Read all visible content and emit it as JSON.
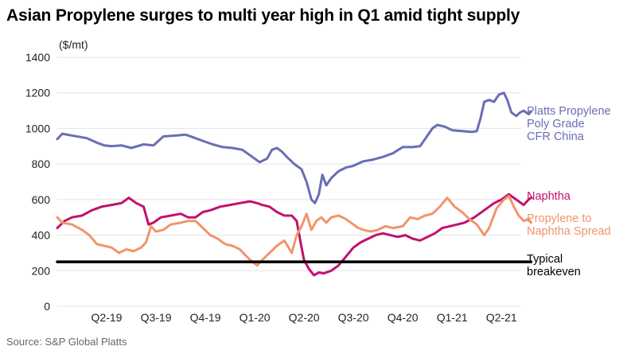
{
  "title": "Asian Propylene surges to multi year high in Q1 amid tight supply",
  "source": "Source: S&P Global Platts",
  "colors": {
    "propylene": "#6a6eb3",
    "naphtha": "#c2116e",
    "spread": "#f0956a",
    "breakeven": "#000000",
    "grid": "#e3e3e3"
  },
  "chart_data": {
    "type": "line",
    "unit_label": "($/mt)",
    "ylim": [
      0,
      1400
    ],
    "y_ticks": [
      {
        "value": 0,
        "label": "0"
      },
      {
        "value": 200,
        "label": "200"
      },
      {
        "value": 400,
        "label": "400"
      },
      {
        "value": 600,
        "label": "600"
      },
      {
        "value": 800,
        "label": "800"
      },
      {
        "value": 1000,
        "label": "1000"
      },
      {
        "value": 1200,
        "label": "1200"
      },
      {
        "value": 1400,
        "label": "1400"
      }
    ],
    "x_ticks": [
      "Q2-19",
      "Q3-19",
      "Q4-19",
      "Q1-20",
      "Q2-20",
      "Q3-20",
      "Q4-20",
      "Q1-21",
      "Q2-21"
    ],
    "x_range": [
      0,
      9.4
    ],
    "grid": "horizontal",
    "series": [
      {
        "name": "Platts Propylene Poly Grade CFR China",
        "label_lines": [
          "Platts Propylene",
          "Poly Grade",
          "CFR China"
        ],
        "color_key": "propylene",
        "points": [
          [
            0,
            940
          ],
          [
            0.1,
            970
          ],
          [
            0.3,
            960
          ],
          [
            0.6,
            945
          ],
          [
            0.8,
            920
          ],
          [
            0.95,
            905
          ],
          [
            1.1,
            900
          ],
          [
            1.3,
            905
          ],
          [
            1.5,
            890
          ],
          [
            1.75,
            910
          ],
          [
            1.95,
            905
          ],
          [
            2.15,
            955
          ],
          [
            2.4,
            960
          ],
          [
            2.6,
            965
          ],
          [
            2.75,
            950
          ],
          [
            2.95,
            930
          ],
          [
            3.15,
            910
          ],
          [
            3.35,
            895
          ],
          [
            3.55,
            890
          ],
          [
            3.75,
            880
          ],
          [
            3.95,
            840
          ],
          [
            4.1,
            810
          ],
          [
            4.25,
            830
          ],
          [
            4.35,
            880
          ],
          [
            4.45,
            890
          ],
          [
            4.55,
            870
          ],
          [
            4.65,
            840
          ],
          [
            4.8,
            800
          ],
          [
            4.95,
            770
          ],
          [
            5.05,
            700
          ],
          [
            5.15,
            600
          ],
          [
            5.22,
            580
          ],
          [
            5.3,
            630
          ],
          [
            5.37,
            740
          ],
          [
            5.45,
            680
          ],
          [
            5.55,
            720
          ],
          [
            5.7,
            760
          ],
          [
            5.85,
            780
          ],
          [
            6.0,
            790
          ],
          [
            6.2,
            815
          ],
          [
            6.4,
            825
          ],
          [
            6.6,
            840
          ],
          [
            6.8,
            860
          ],
          [
            7.0,
            895
          ],
          [
            7.2,
            895
          ],
          [
            7.35,
            900
          ],
          [
            7.5,
            960
          ],
          [
            7.6,
            1000
          ],
          [
            7.7,
            1020
          ],
          [
            7.85,
            1010
          ],
          [
            8.0,
            990
          ],
          [
            8.2,
            985
          ],
          [
            8.4,
            980
          ],
          [
            8.5,
            985
          ],
          [
            8.58,
            1060
          ],
          [
            8.65,
            1150
          ],
          [
            8.75,
            1160
          ],
          [
            8.85,
            1150
          ],
          [
            8.95,
            1190
          ],
          [
            9.05,
            1200
          ],
          [
            9.12,
            1160
          ],
          [
            9.2,
            1090
          ],
          [
            9.3,
            1070
          ],
          [
            9.38,
            1090
          ],
          [
            9.45,
            1100
          ],
          [
            9.55,
            1080
          ],
          [
            9.6,
            1095
          ]
        ]
      },
      {
        "name": "Naphtha",
        "label_lines": [
          "Naphtha"
        ],
        "color_key": "naphtha",
        "points": [
          [
            0,
            440
          ],
          [
            0.15,
            480
          ],
          [
            0.3,
            500
          ],
          [
            0.5,
            510
          ],
          [
            0.7,
            540
          ],
          [
            0.9,
            560
          ],
          [
            1.1,
            570
          ],
          [
            1.3,
            580
          ],
          [
            1.45,
            610
          ],
          [
            1.6,
            580
          ],
          [
            1.75,
            560
          ],
          [
            1.85,
            460
          ],
          [
            1.95,
            470
          ],
          [
            2.1,
            500
          ],
          [
            2.3,
            510
          ],
          [
            2.5,
            520
          ],
          [
            2.65,
            500
          ],
          [
            2.8,
            500
          ],
          [
            2.95,
            530
          ],
          [
            3.1,
            540
          ],
          [
            3.3,
            560
          ],
          [
            3.5,
            570
          ],
          [
            3.7,
            580
          ],
          [
            3.9,
            590
          ],
          [
            4.05,
            580
          ],
          [
            4.15,
            570
          ],
          [
            4.3,
            560
          ],
          [
            4.45,
            530
          ],
          [
            4.6,
            510
          ],
          [
            4.75,
            510
          ],
          [
            4.85,
            480
          ],
          [
            4.95,
            330
          ],
          [
            5.0,
            260
          ],
          [
            5.1,
            210
          ],
          [
            5.2,
            175
          ],
          [
            5.3,
            190
          ],
          [
            5.4,
            185
          ],
          [
            5.55,
            200
          ],
          [
            5.7,
            230
          ],
          [
            5.85,
            280
          ],
          [
            6.0,
            330
          ],
          [
            6.15,
            360
          ],
          [
            6.3,
            380
          ],
          [
            6.45,
            400
          ],
          [
            6.6,
            410
          ],
          [
            6.75,
            400
          ],
          [
            6.9,
            390
          ],
          [
            7.05,
            400
          ],
          [
            7.2,
            380
          ],
          [
            7.35,
            370
          ],
          [
            7.5,
            390
          ],
          [
            7.65,
            410
          ],
          [
            7.8,
            440
          ],
          [
            7.95,
            450
          ],
          [
            8.1,
            460
          ],
          [
            8.25,
            470
          ],
          [
            8.45,
            500
          ],
          [
            8.65,
            540
          ],
          [
            8.85,
            580
          ],
          [
            9.0,
            600
          ],
          [
            9.15,
            630
          ],
          [
            9.3,
            600
          ],
          [
            9.45,
            570
          ],
          [
            9.55,
            600
          ],
          [
            9.6,
            610
          ]
        ]
      },
      {
        "name": "Propylene to Naphtha Spread",
        "label_lines": [
          "Propylene to",
          "Naphtha Spread"
        ],
        "color_key": "spread",
        "points": [
          [
            0,
            500
          ],
          [
            0.1,
            470
          ],
          [
            0.3,
            460
          ],
          [
            0.5,
            430
          ],
          [
            0.65,
            400
          ],
          [
            0.8,
            350
          ],
          [
            0.95,
            340
          ],
          [
            1.1,
            330
          ],
          [
            1.25,
            300
          ],
          [
            1.4,
            320
          ],
          [
            1.55,
            310
          ],
          [
            1.7,
            330
          ],
          [
            1.8,
            360
          ],
          [
            1.9,
            450
          ],
          [
            2.0,
            420
          ],
          [
            2.15,
            430
          ],
          [
            2.3,
            460
          ],
          [
            2.5,
            470
          ],
          [
            2.65,
            480
          ],
          [
            2.8,
            480
          ],
          [
            2.95,
            440
          ],
          [
            3.1,
            400
          ],
          [
            3.25,
            380
          ],
          [
            3.4,
            350
          ],
          [
            3.55,
            340
          ],
          [
            3.7,
            320
          ],
          [
            3.8,
            290
          ],
          [
            3.95,
            250
          ],
          [
            4.05,
            230
          ],
          [
            4.15,
            260
          ],
          [
            4.3,
            300
          ],
          [
            4.45,
            340
          ],
          [
            4.6,
            370
          ],
          [
            4.75,
            300
          ],
          [
            4.85,
            400
          ],
          [
            4.95,
            450
          ],
          [
            5.05,
            520
          ],
          [
            5.15,
            430
          ],
          [
            5.25,
            480
          ],
          [
            5.35,
            500
          ],
          [
            5.45,
            470
          ],
          [
            5.55,
            500
          ],
          [
            5.7,
            510
          ],
          [
            5.85,
            490
          ],
          [
            6.0,
            460
          ],
          [
            6.1,
            440
          ],
          [
            6.2,
            430
          ],
          [
            6.35,
            420
          ],
          [
            6.5,
            430
          ],
          [
            6.65,
            450
          ],
          [
            6.8,
            440
          ],
          [
            7.0,
            450
          ],
          [
            7.15,
            500
          ],
          [
            7.3,
            490
          ],
          [
            7.45,
            510
          ],
          [
            7.6,
            520
          ],
          [
            7.75,
            560
          ],
          [
            7.9,
            610
          ],
          [
            8.05,
            560
          ],
          [
            8.2,
            530
          ],
          [
            8.35,
            490
          ],
          [
            8.5,
            460
          ],
          [
            8.6,
            420
          ],
          [
            8.65,
            400
          ],
          [
            8.75,
            440
          ],
          [
            8.9,
            550
          ],
          [
            9.05,
            600
          ],
          [
            9.15,
            620
          ],
          [
            9.25,
            560
          ],
          [
            9.35,
            510
          ],
          [
            9.45,
            480
          ],
          [
            9.55,
            490
          ],
          [
            9.6,
            470
          ]
        ]
      },
      {
        "name": "Typical breakeven",
        "label_lines": [
          "Typical",
          "breakeven"
        ],
        "color_key": "breakeven",
        "points": [
          [
            0,
            250
          ],
          [
            9.6,
            250
          ]
        ]
      }
    ]
  }
}
